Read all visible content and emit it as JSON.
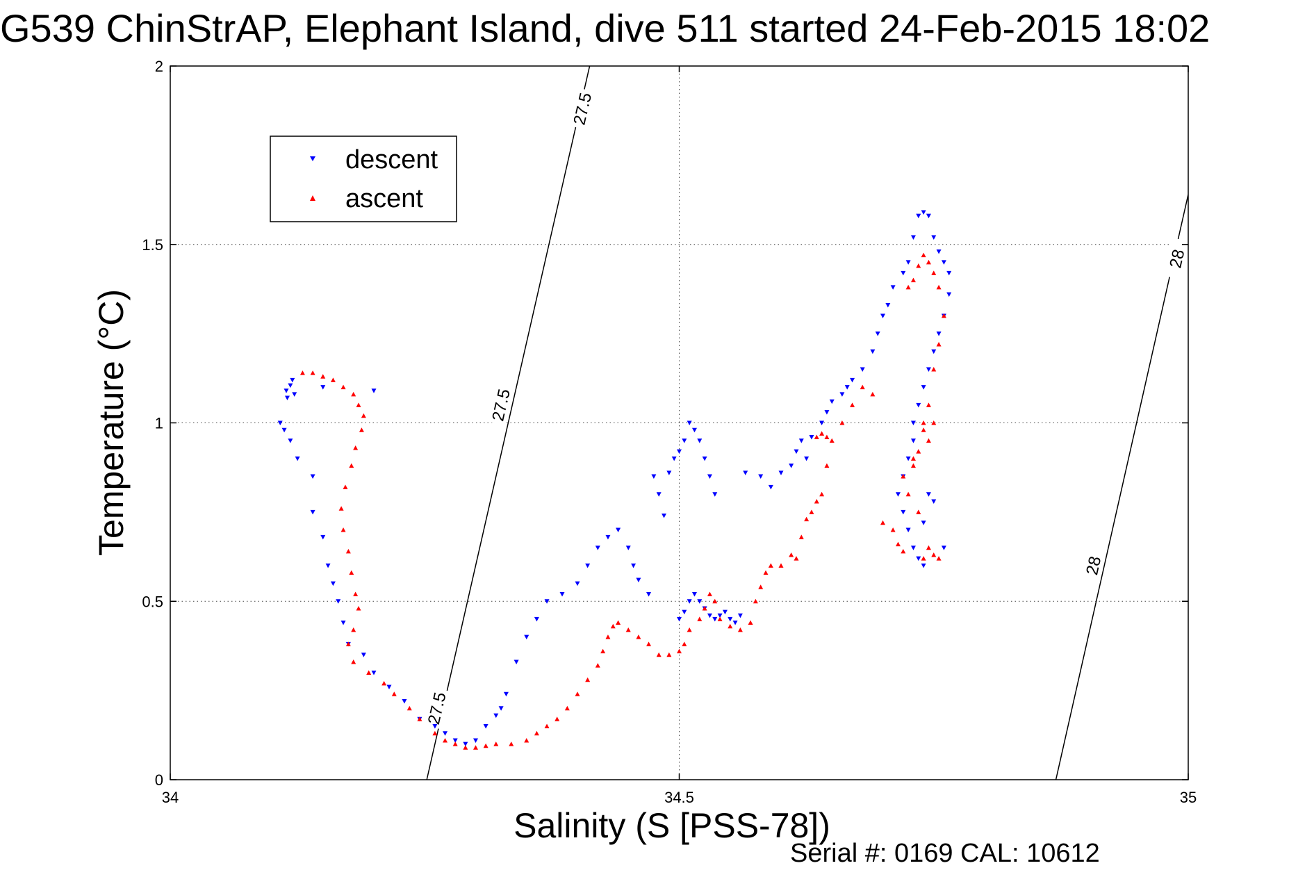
{
  "chart_data": {
    "type": "scatter",
    "title": "G539 ChinStrAP, Elephant Island, dive 511 started 24-Feb-2015 18:02",
    "xlabel": "Salinity (S [PSS-78])",
    "ylabel": "Temperature (°C)",
    "xlim": [
      34,
      35
    ],
    "ylim": [
      0,
      2
    ],
    "xticks": [
      34,
      34.5,
      35
    ],
    "xtick_labels": [
      "34",
      "34.5",
      "35"
    ],
    "yticks": [
      0,
      0.5,
      1,
      1.5,
      2
    ],
    "ytick_labels": [
      "0",
      "0.5",
      "1",
      "1.5",
      "2"
    ],
    "grid": true,
    "legend_position": "top-left",
    "footer": "Serial #: 0169 CAL: 10612",
    "isopycnals": [
      {
        "label": "27.5",
        "points": [
          [
            34.252,
            0
          ],
          [
            34.412,
            2
          ]
        ],
        "label_positions": [
          [
            34.262,
            0.2
          ],
          [
            34.325,
            1.05
          ],
          [
            34.405,
            1.88
          ]
        ]
      },
      {
        "label": "28",
        "points": [
          [
            34.87,
            0
          ],
          [
            35.0,
            1.64
          ]
        ],
        "label_positions": [
          [
            34.907,
            0.6
          ],
          [
            34.989,
            1.46
          ]
        ]
      }
    ],
    "series": [
      {
        "name": "descent",
        "color": "#0000ff",
        "marker": "triangle-down",
        "points": [
          [
            34.12,
            1.12
          ],
          [
            34.118,
            1.105
          ],
          [
            34.114,
            1.09
          ],
          [
            34.122,
            1.08
          ],
          [
            34.115,
            1.07
          ],
          [
            34.108,
            1.0
          ],
          [
            34.112,
            0.98
          ],
          [
            34.118,
            0.95
          ],
          [
            34.125,
            0.9
          ],
          [
            34.14,
            0.85
          ],
          [
            34.15,
            1.1
          ],
          [
            34.2,
            1.09
          ],
          [
            34.14,
            0.75
          ],
          [
            34.15,
            0.68
          ],
          [
            34.155,
            0.6
          ],
          [
            34.16,
            0.55
          ],
          [
            34.165,
            0.5
          ],
          [
            34.17,
            0.44
          ],
          [
            34.175,
            0.38
          ],
          [
            34.19,
            0.35
          ],
          [
            34.2,
            0.3
          ],
          [
            34.215,
            0.26
          ],
          [
            34.23,
            0.22
          ],
          [
            34.245,
            0.17
          ],
          [
            34.26,
            0.15
          ],
          [
            34.27,
            0.13
          ],
          [
            34.28,
            0.11
          ],
          [
            34.29,
            0.1
          ],
          [
            34.3,
            0.11
          ],
          [
            34.31,
            0.15
          ],
          [
            34.32,
            0.18
          ],
          [
            34.325,
            0.2
          ],
          [
            34.33,
            0.24
          ],
          [
            34.34,
            0.33
          ],
          [
            34.35,
            0.4
          ],
          [
            34.36,
            0.45
          ],
          [
            34.37,
            0.5
          ],
          [
            34.385,
            0.52
          ],
          [
            34.4,
            0.55
          ],
          [
            34.41,
            0.6
          ],
          [
            34.42,
            0.65
          ],
          [
            34.43,
            0.68
          ],
          [
            34.44,
            0.7
          ],
          [
            34.45,
            0.65
          ],
          [
            34.455,
            0.6
          ],
          [
            34.46,
            0.56
          ],
          [
            34.47,
            0.52
          ],
          [
            34.475,
            0.85
          ],
          [
            34.48,
            0.8
          ],
          [
            34.485,
            0.74
          ],
          [
            34.49,
            0.86
          ],
          [
            34.495,
            0.9
          ],
          [
            34.5,
            0.92
          ],
          [
            34.505,
            0.95
          ],
          [
            34.51,
            1.0
          ],
          [
            34.515,
            0.98
          ],
          [
            34.52,
            0.95
          ],
          [
            34.525,
            0.9
          ],
          [
            34.53,
            0.85
          ],
          [
            34.535,
            0.8
          ],
          [
            34.5,
            0.45
          ],
          [
            34.505,
            0.47
          ],
          [
            34.51,
            0.5
          ],
          [
            34.515,
            0.52
          ],
          [
            34.52,
            0.5
          ],
          [
            34.525,
            0.48
          ],
          [
            34.53,
            0.46
          ],
          [
            34.535,
            0.45
          ],
          [
            34.54,
            0.46
          ],
          [
            34.545,
            0.47
          ],
          [
            34.55,
            0.45
          ],
          [
            34.555,
            0.44
          ],
          [
            34.56,
            0.46
          ],
          [
            34.565,
            0.86
          ],
          [
            34.58,
            0.85
          ],
          [
            34.59,
            0.82
          ],
          [
            34.6,
            0.86
          ],
          [
            34.61,
            0.88
          ],
          [
            34.615,
            0.92
          ],
          [
            34.62,
            0.95
          ],
          [
            34.625,
            0.9
          ],
          [
            34.63,
            0.96
          ],
          [
            34.64,
            1.0
          ],
          [
            34.645,
            1.03
          ],
          [
            34.65,
            1.06
          ],
          [
            34.66,
            1.08
          ],
          [
            34.665,
            1.1
          ],
          [
            34.67,
            1.12
          ],
          [
            34.68,
            1.15
          ],
          [
            34.69,
            1.2
          ],
          [
            34.695,
            1.25
          ],
          [
            34.7,
            1.3
          ],
          [
            34.705,
            1.33
          ],
          [
            34.71,
            1.38
          ],
          [
            34.72,
            1.42
          ],
          [
            34.725,
            1.45
          ],
          [
            34.73,
            1.52
          ],
          [
            34.735,
            1.58
          ],
          [
            34.74,
            1.59
          ],
          [
            34.745,
            1.58
          ],
          [
            34.75,
            1.52
          ],
          [
            34.755,
            1.48
          ],
          [
            34.76,
            1.45
          ],
          [
            34.765,
            1.42
          ],
          [
            34.765,
            1.36
          ],
          [
            34.76,
            1.3
          ],
          [
            34.755,
            1.25
          ],
          [
            34.75,
            1.2
          ],
          [
            34.745,
            1.15
          ],
          [
            34.74,
            1.1
          ],
          [
            34.735,
            1.05
          ],
          [
            34.73,
            1.0
          ],
          [
            34.73,
            0.95
          ],
          [
            34.725,
            0.9
          ],
          [
            34.72,
            0.85
          ],
          [
            34.715,
            0.8
          ],
          [
            34.72,
            0.75
          ],
          [
            34.725,
            0.7
          ],
          [
            34.73,
            0.65
          ],
          [
            34.735,
            0.62
          ],
          [
            34.74,
            0.6
          ],
          [
            34.76,
            0.65
          ],
          [
            34.745,
            0.8
          ],
          [
            34.75,
            0.78
          ],
          [
            34.74,
            0.72
          ]
        ]
      },
      {
        "name": "ascent",
        "color": "#ff0000",
        "marker": "triangle-up",
        "points": [
          [
            34.13,
            1.14
          ],
          [
            34.14,
            1.14
          ],
          [
            34.15,
            1.13
          ],
          [
            34.16,
            1.12
          ],
          [
            34.17,
            1.1
          ],
          [
            34.18,
            1.08
          ],
          [
            34.185,
            1.05
          ],
          [
            34.19,
            1.02
          ],
          [
            34.188,
            0.98
          ],
          [
            34.182,
            0.93
          ],
          [
            34.178,
            0.88
          ],
          [
            34.172,
            0.82
          ],
          [
            34.168,
            0.76
          ],
          [
            34.17,
            0.7
          ],
          [
            34.175,
            0.64
          ],
          [
            34.178,
            0.58
          ],
          [
            34.182,
            0.52
          ],
          [
            34.185,
            0.48
          ],
          [
            34.18,
            0.42
          ],
          [
            34.175,
            0.38
          ],
          [
            34.18,
            0.33
          ],
          [
            34.195,
            0.3
          ],
          [
            34.21,
            0.27
          ],
          [
            34.22,
            0.24
          ],
          [
            34.235,
            0.2
          ],
          [
            34.245,
            0.17
          ],
          [
            34.26,
            0.13
          ],
          [
            34.27,
            0.11
          ],
          [
            34.28,
            0.1
          ],
          [
            34.29,
            0.09
          ],
          [
            34.3,
            0.09
          ],
          [
            34.31,
            0.095
          ],
          [
            34.32,
            0.1
          ],
          [
            34.335,
            0.1
          ],
          [
            34.35,
            0.11
          ],
          [
            34.36,
            0.13
          ],
          [
            34.37,
            0.15
          ],
          [
            34.38,
            0.17
          ],
          [
            34.39,
            0.2
          ],
          [
            34.4,
            0.24
          ],
          [
            34.41,
            0.28
          ],
          [
            34.42,
            0.32
          ],
          [
            34.425,
            0.36
          ],
          [
            34.43,
            0.4
          ],
          [
            34.435,
            0.43
          ],
          [
            34.44,
            0.44
          ],
          [
            34.45,
            0.42
          ],
          [
            34.46,
            0.4
          ],
          [
            34.47,
            0.38
          ],
          [
            34.48,
            0.35
          ],
          [
            34.49,
            0.35
          ],
          [
            34.5,
            0.36
          ],
          [
            34.505,
            0.38
          ],
          [
            34.51,
            0.42
          ],
          [
            34.52,
            0.45
          ],
          [
            34.525,
            0.48
          ],
          [
            34.53,
            0.52
          ],
          [
            34.535,
            0.5
          ],
          [
            34.54,
            0.45
          ],
          [
            34.55,
            0.43
          ],
          [
            34.56,
            0.42
          ],
          [
            34.57,
            0.44
          ],
          [
            34.575,
            0.5
          ],
          [
            34.58,
            0.54
          ],
          [
            34.585,
            0.58
          ],
          [
            34.59,
            0.6
          ],
          [
            34.6,
            0.6
          ],
          [
            34.61,
            0.63
          ],
          [
            34.615,
            0.62
          ],
          [
            34.62,
            0.68
          ],
          [
            34.625,
            0.73
          ],
          [
            34.63,
            0.75
          ],
          [
            34.635,
            0.78
          ],
          [
            34.64,
            0.8
          ],
          [
            34.645,
            0.88
          ],
          [
            34.65,
            0.95
          ],
          [
            34.66,
            1.0
          ],
          [
            34.67,
            1.05
          ],
          [
            34.68,
            1.1
          ],
          [
            34.69,
            1.08
          ],
          [
            34.7,
            0.72
          ],
          [
            34.71,
            0.7
          ],
          [
            34.715,
            0.66
          ],
          [
            34.72,
            0.64
          ],
          [
            34.725,
            0.8
          ],
          [
            34.73,
            0.88
          ],
          [
            34.735,
            0.92
          ],
          [
            34.74,
            0.98
          ],
          [
            34.745,
            1.05
          ],
          [
            34.75,
            1.15
          ],
          [
            34.755,
            1.22
          ],
          [
            34.76,
            1.3
          ],
          [
            34.755,
            1.38
          ],
          [
            34.75,
            1.42
          ],
          [
            34.745,
            1.45
          ],
          [
            34.74,
            1.47
          ],
          [
            34.735,
            1.44
          ],
          [
            34.73,
            1.4
          ],
          [
            34.725,
            1.38
          ],
          [
            34.74,
            0.62
          ],
          [
            34.745,
            0.65
          ],
          [
            34.75,
            0.63
          ],
          [
            34.755,
            0.62
          ],
          [
            34.735,
            0.75
          ],
          [
            34.72,
            0.85
          ],
          [
            34.73,
            0.9
          ],
          [
            34.74,
            1.0
          ],
          [
            34.745,
            0.95
          ],
          [
            34.75,
            1.0
          ],
          [
            34.635,
            0.96
          ],
          [
            34.64,
            0.97
          ],
          [
            34.645,
            0.96
          ]
        ]
      }
    ]
  }
}
